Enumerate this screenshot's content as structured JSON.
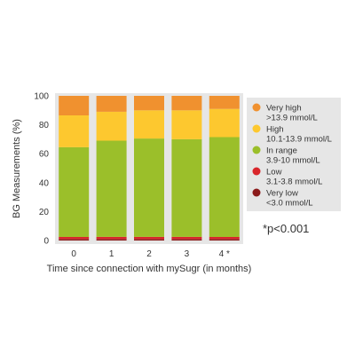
{
  "chart_data": {
    "type": "bar",
    "stacked": true,
    "categories": [
      "0",
      "1",
      "2",
      "3",
      "4 *"
    ],
    "series": [
      {
        "name": "Very low <3.0 mmol/L",
        "color": "#8b1a1a",
        "values": [
          1,
          1,
          1,
          1,
          1
        ]
      },
      {
        "name": "Low 3.1-3.8 mmol/L",
        "color": "#d9262b",
        "values": [
          1.5,
          1.5,
          1.5,
          1.5,
          1.5
        ]
      },
      {
        "name": "In range 3.9-10 mmol/L",
        "color": "#9bbf2a",
        "values": [
          62,
          66.5,
          68,
          67.5,
          69
        ]
      },
      {
        "name": "High 10.1-13.9 mmol/L",
        "color": "#fdc82f",
        "values": [
          22,
          20,
          19.5,
          20,
          19.5
        ]
      },
      {
        "name": "Very high >13.9 mmol/L",
        "color": "#f0912f",
        "values": [
          13.5,
          11,
          10,
          10,
          9
        ]
      }
    ],
    "ylabel": "BG Measurements (%)",
    "xlabel": "Time since connection with mySugr (in months)",
    "ylim": [
      0,
      100
    ],
    "yticks": [
      0,
      20,
      40,
      60,
      80,
      100
    ],
    "grid": false,
    "legend": {
      "placement": "right",
      "background": "#e6e6e6",
      "items": [
        {
          "line1": "Very high",
          "line2": ">13.9 mmol/L",
          "color": "#f0912f"
        },
        {
          "line1": "High",
          "line2": "10.1-13.9 mmol/L",
          "color": "#fdc82f"
        },
        {
          "line1": "In range",
          "line2": "3.9-10 mmol/L",
          "color": "#9bbf2a"
        },
        {
          "line1": "Low",
          "line2": "3.1-3.8 mmol/L",
          "color": "#d9262b"
        },
        {
          "line1": "Very low",
          "line2": "<3.0 mmol/L",
          "color": "#8b1a1a"
        }
      ]
    },
    "annotation": "*p<0.001",
    "panel_background": "#e6e6e6"
  }
}
